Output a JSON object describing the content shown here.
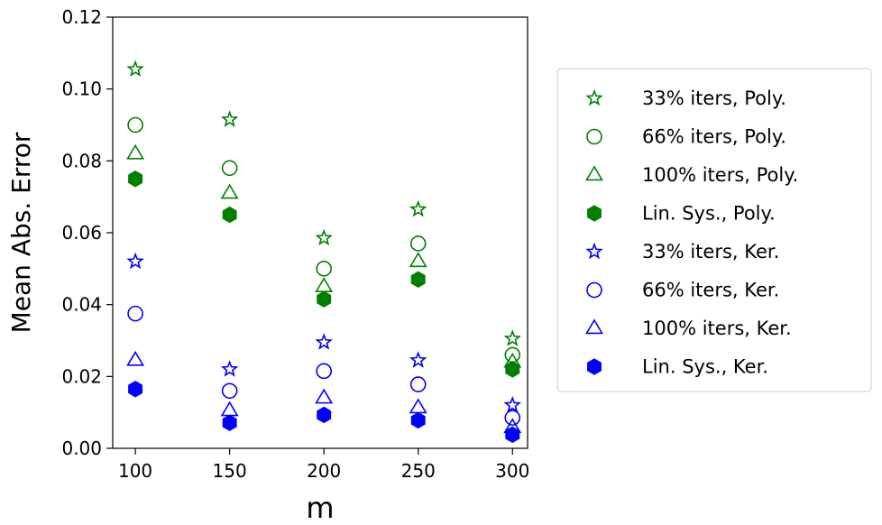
{
  "chart_data": {
    "type": "scatter",
    "xlabel": "m",
    "ylabel": "Mean Abs. Error",
    "xlim": [
      88,
      308
    ],
    "ylim": [
      0.0,
      0.12
    ],
    "x_ticks": [
      100,
      150,
      200,
      250,
      300
    ],
    "x_tick_labels": [
      "100",
      "150",
      "200",
      "250",
      "300"
    ],
    "y_ticks": [
      0.0,
      0.02,
      0.04,
      0.06,
      0.08,
      0.1,
      0.12
    ],
    "y_tick_labels": [
      "0.00",
      "0.02",
      "0.04",
      "0.06",
      "0.08",
      "0.10",
      "0.12"
    ],
    "grid": false,
    "legend_position": "outside-right",
    "x": [
      100,
      150,
      200,
      250,
      300
    ],
    "series": [
      {
        "name": "33% iters, Poly.",
        "marker": "star",
        "filled": false,
        "color": "#008000",
        "values": [
          0.1055,
          0.0915,
          0.0585,
          0.0665,
          0.0305
        ]
      },
      {
        "name": "66% iters, Poly.",
        "marker": "circle",
        "filled": false,
        "color": "#008000",
        "values": [
          0.09,
          0.078,
          0.05,
          0.057,
          0.026
        ]
      },
      {
        "name": "100% iters, Poly.",
        "marker": "triangle",
        "filled": false,
        "color": "#008000",
        "values": [
          0.082,
          0.071,
          0.045,
          0.052,
          0.024
        ]
      },
      {
        "name": "Lin. Sys., Poly.",
        "marker": "hexagon",
        "filled": true,
        "color": "#008000",
        "values": [
          0.075,
          0.065,
          0.0415,
          0.047,
          0.022
        ]
      },
      {
        "name": "33% iters, Ker.",
        "marker": "star",
        "filled": false,
        "color": "#0000ff",
        "values": [
          0.052,
          0.022,
          0.0295,
          0.0245,
          0.012
        ]
      },
      {
        "name": "66% iters, Ker.",
        "marker": "circle",
        "filled": false,
        "color": "#0000ff",
        "values": [
          0.0375,
          0.016,
          0.0215,
          0.0178,
          0.0085
        ]
      },
      {
        "name": "100% iters, Ker.",
        "marker": "triangle",
        "filled": false,
        "color": "#0000ff",
        "values": [
          0.0245,
          0.0105,
          0.014,
          0.0113,
          0.0058
        ]
      },
      {
        "name": "Lin. Sys., Ker.",
        "marker": "hexagon",
        "filled": true,
        "color": "#0000ff",
        "values": [
          0.0165,
          0.0071,
          0.0093,
          0.0078,
          0.0038
        ]
      }
    ]
  }
}
